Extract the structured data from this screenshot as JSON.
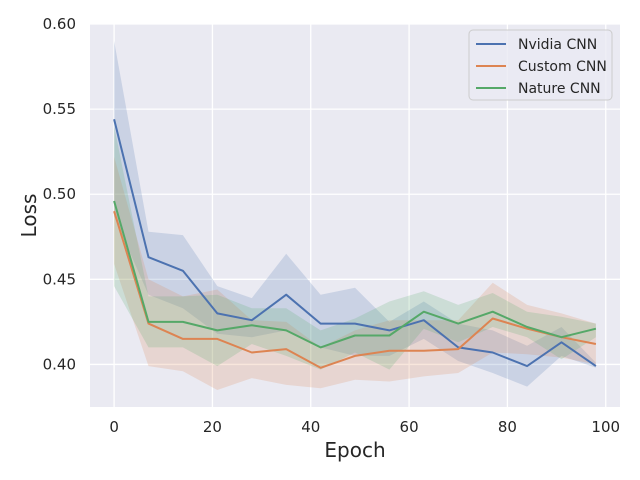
{
  "chart_data": {
    "type": "line",
    "title": "",
    "xlabel": "Epoch",
    "ylabel": "Loss",
    "xlim": [
      -4.9,
      102.9
    ],
    "ylim": [
      0.375,
      0.6
    ],
    "xticks": [
      0,
      20,
      40,
      60,
      80,
      100
    ],
    "xtick_labels": [
      "0",
      "20",
      "40",
      "60",
      "80",
      "100"
    ],
    "yticks": [
      0.4,
      0.45,
      0.5,
      0.55,
      0.6
    ],
    "ytick_labels": [
      "0.40",
      "0.45",
      "0.50",
      "0.55",
      "0.60"
    ],
    "grid": true,
    "legend_position": "upper right",
    "x": [
      0,
      7,
      14,
      21,
      28,
      35,
      42,
      49,
      56,
      63,
      70,
      77,
      84,
      91,
      98
    ],
    "series": [
      {
        "name": "Nvidia CNN",
        "color": "#4c72b0",
        "values": [
          0.544,
          0.463,
          0.455,
          0.43,
          0.426,
          0.441,
          0.424,
          0.424,
          0.42,
          0.426,
          0.41,
          0.407,
          0.399,
          0.413,
          0.399
        ],
        "lower": [
          0.487,
          0.441,
          0.433,
          0.418,
          0.416,
          0.42,
          0.41,
          0.405,
          0.405,
          0.415,
          0.402,
          0.395,
          0.387,
          0.405,
          0.398
        ],
        "upper": [
          0.59,
          0.478,
          0.476,
          0.446,
          0.439,
          0.465,
          0.441,
          0.445,
          0.425,
          0.437,
          0.424,
          0.42,
          0.411,
          0.422,
          0.401
        ]
      },
      {
        "name": "Custom CNN",
        "color": "#dd8452",
        "values": [
          0.49,
          0.424,
          0.415,
          0.415,
          0.407,
          0.409,
          0.398,
          0.405,
          0.408,
          0.408,
          0.409,
          0.427,
          0.421,
          0.416,
          0.412
        ],
        "lower": [
          0.459,
          0.399,
          0.396,
          0.385,
          0.392,
          0.388,
          0.386,
          0.391,
          0.39,
          0.393,
          0.395,
          0.407,
          0.406,
          0.404,
          0.4
        ],
        "upper": [
          0.522,
          0.45,
          0.44,
          0.444,
          0.426,
          0.425,
          0.41,
          0.42,
          0.426,
          0.426,
          0.426,
          0.448,
          0.435,
          0.43,
          0.424
        ]
      },
      {
        "name": "Nature CNN",
        "color": "#55a868",
        "values": [
          0.496,
          0.425,
          0.425,
          0.42,
          0.423,
          0.42,
          0.41,
          0.417,
          0.417,
          0.431,
          0.424,
          0.431,
          0.422,
          0.416,
          0.421
        ],
        "lower": [
          0.446,
          0.41,
          0.41,
          0.399,
          0.412,
          0.405,
          0.397,
          0.407,
          0.397,
          0.421,
          0.413,
          0.422,
          0.416,
          0.403,
          0.416
        ],
        "upper": [
          0.54,
          0.44,
          0.44,
          0.441,
          0.433,
          0.433,
          0.42,
          0.427,
          0.437,
          0.443,
          0.435,
          0.442,
          0.431,
          0.428,
          0.424
        ]
      }
    ]
  }
}
